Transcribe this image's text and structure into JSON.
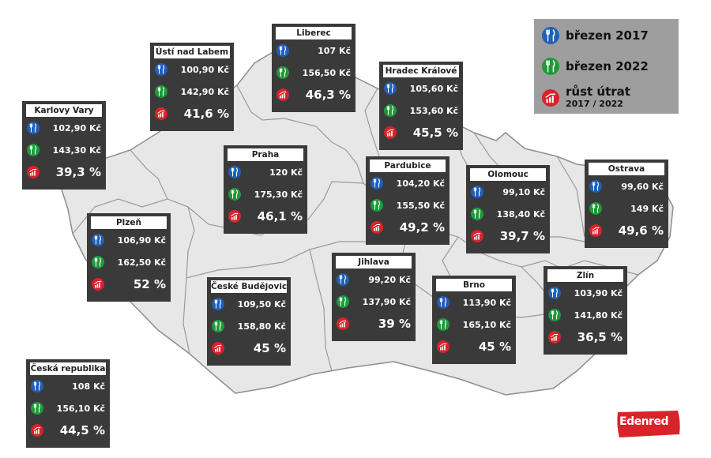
{
  "colors": {
    "map_fill": "#e7e7e7",
    "map_border": "#8d8d8d",
    "card_bg": "#3a3a3a",
    "blue": "#1f5fb8",
    "green": "#1f9a3a",
    "red": "#d8232a",
    "legend_bg": "#9e9e9e"
  },
  "legend": {
    "item_2017": "březen 2017",
    "item_2022": "březen 2022",
    "growth_label": "růst útrat",
    "growth_sub": "2017 / 2022",
    "icons": [
      "cutlery-icon-blue",
      "cutlery-icon-green",
      "growth-chart-icon-red"
    ]
  },
  "regions": {
    "karlovy_vary": {
      "name": "Karlovy Vary",
      "v2017": "102,90 Kč",
      "v2022": "143,30 Kč",
      "growth": "39,3 %"
    },
    "usti": {
      "name": "Ústí nad Labem",
      "v2017": "100,90 Kč",
      "v2022": "142,90 Kč",
      "growth": "41,6 %"
    },
    "liberec": {
      "name": "Liberec",
      "v2017": "107 Kč",
      "v2022": "156,50 Kč",
      "growth": "46,3 %"
    },
    "hradec": {
      "name": "Hradec Králové",
      "v2017": "105,60 Kč",
      "v2022": "153,60 Kč",
      "growth": "45,5 %"
    },
    "praha": {
      "name": "Praha",
      "v2017": "120 Kč",
      "v2022": "175,30 Kč",
      "growth": "46,1 %"
    },
    "pardubice": {
      "name": "Pardubice",
      "v2017": "104,20 Kč",
      "v2022": "155,50 Kč",
      "growth": "49,2 %"
    },
    "olomouc": {
      "name": "Olomouc",
      "v2017": "99,10 Kč",
      "v2022": "138,40 Kč",
      "growth": "39,7 %"
    },
    "ostrava": {
      "name": "Ostrava",
      "v2017": "99,60 Kč",
      "v2022": "149 Kč",
      "growth": "49,6 %"
    },
    "plzen": {
      "name": "Plzeň",
      "v2017": "106,90 Kč",
      "v2022": "162,50 Kč",
      "growth": "52 %"
    },
    "jihlava": {
      "name": "Jihlava",
      "v2017": "99,20 Kč",
      "v2022": "137,90 Kč",
      "growth": "39 %"
    },
    "ceske_budejovice": {
      "name": "České Budějovice",
      "v2017": "109,50 Kč",
      "v2022": "158,80 Kč",
      "growth": "45 %"
    },
    "brno": {
      "name": "Brno",
      "v2017": "113,90 Kč",
      "v2022": "165,10 Kč",
      "growth": "45 %"
    },
    "zlin": {
      "name": "Zlín",
      "v2017": "103,90 Kč",
      "v2022": "141,80 Kč",
      "growth": "36,5 %"
    },
    "cr": {
      "name": "Česká republika",
      "v2017": "108 Kč",
      "v2022": "156,10 Kč",
      "growth": "44,5 %"
    }
  },
  "logo": {
    "text": "Edenred"
  }
}
